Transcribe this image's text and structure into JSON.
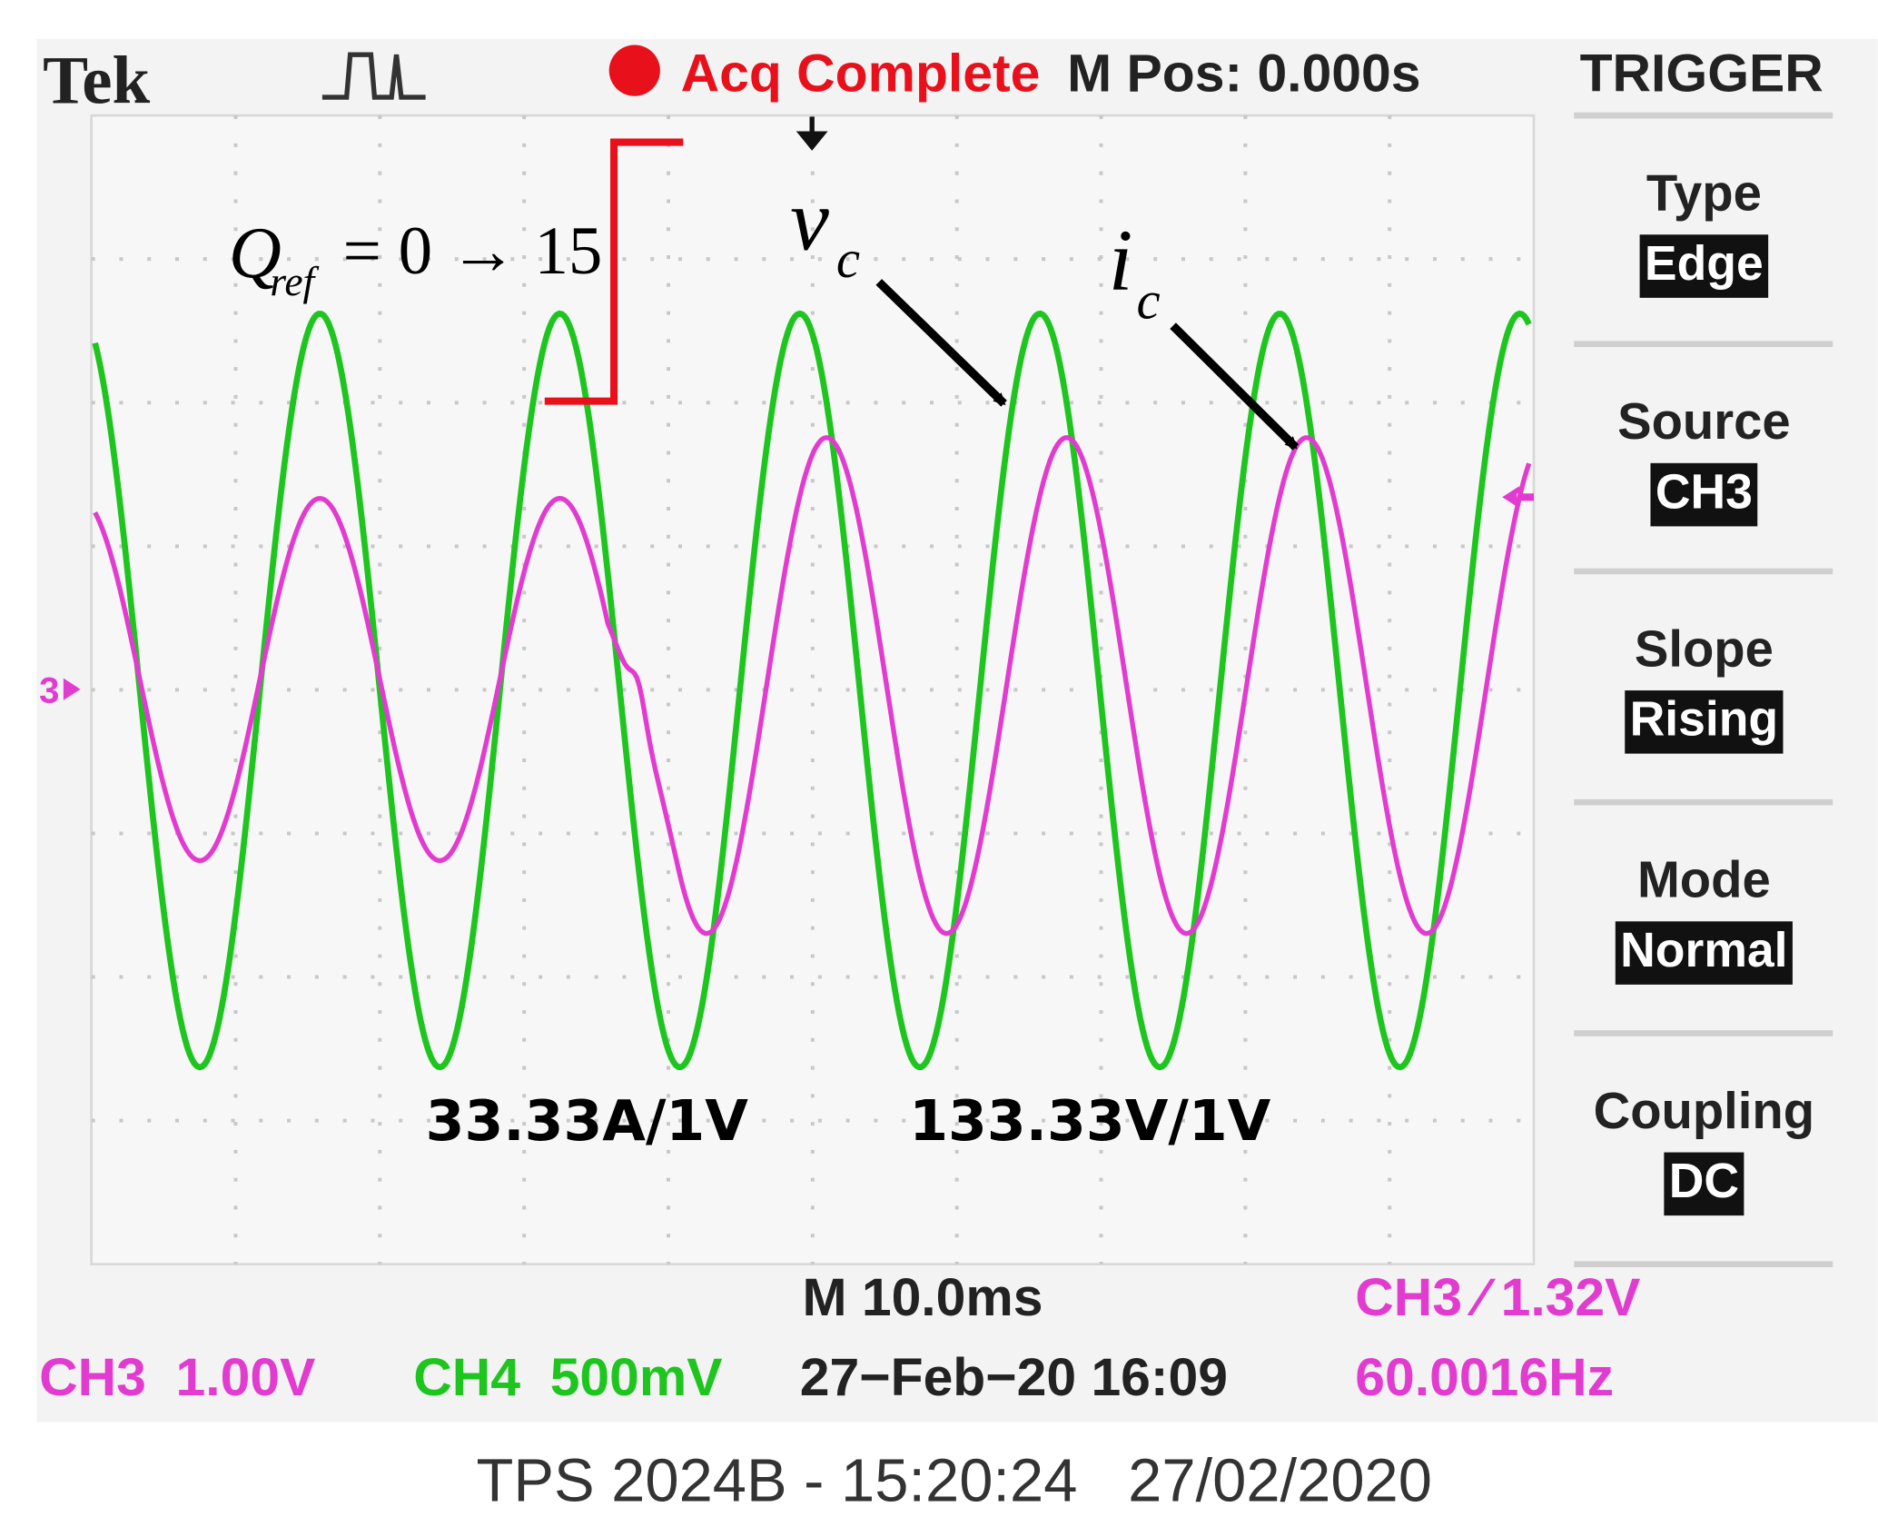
{
  "header": {
    "brand": "Tek",
    "status": "Acq Complete",
    "position": "M Pos: 0.000s",
    "menu_title": "TRIGGER"
  },
  "menu": [
    {
      "label": "Type",
      "value": "Edge"
    },
    {
      "label": "Source",
      "value": "CH3"
    },
    {
      "label": "Slope",
      "value": "Rising"
    },
    {
      "label": "Mode",
      "value": "Normal"
    },
    {
      "label": "Coupling",
      "value": "DC"
    }
  ],
  "readouts": {
    "timebase": "M 10.0ms",
    "trigger": "CH3 ⁄ 1.32V",
    "ch3": "CH3  1.00V",
    "ch4": "CH4  500mV",
    "date": "27−Feb−20 16:09",
    "frequency": "60.0016Hz"
  },
  "markers": {
    "ch3": "3"
  },
  "annotations": {
    "q_ref": {
      "symbol": "Q",
      "subscript": "ref",
      "expression": "= 0 → 15"
    },
    "v_c": {
      "symbol": "v",
      "subscript": "c"
    },
    "i_c": {
      "symbol": "i",
      "subscript": "c"
    },
    "current_scale": "33.33A/1V",
    "voltage_scale": "133.33V/1V"
  },
  "footer": "TPS 2024B - 15:20:24   27/02/2020"
}
